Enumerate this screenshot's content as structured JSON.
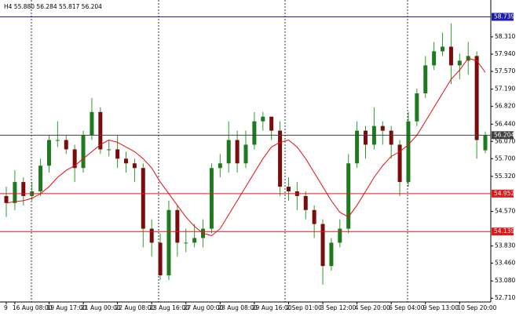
{
  "chart_data": {
    "type": "candlestick",
    "header": "H4  55.880 56.284 55.817 56.204",
    "categories": [
      "9",
      "16 Aug 08:00",
      null,
      null,
      null,
      "19 Aug 17:00",
      null,
      null,
      null,
      "21 Aug 00:00",
      null,
      null,
      null,
      "22 Aug 08:00",
      null,
      null,
      null,
      "23 Aug 16:00",
      null,
      null,
      null,
      "27 Aug 00:00",
      null,
      null,
      null,
      "28 Aug 08:00",
      null,
      null,
      null,
      "29 Aug 16:00",
      null,
      null,
      null,
      "2 Sep 01:00",
      null,
      null,
      null,
      "3 Sep 12:00",
      null,
      null,
      null,
      "4 Sep 20:00",
      null,
      null,
      null,
      "6 Sep 04:00",
      null,
      null,
      null,
      "9 Sep 13:00",
      null,
      null,
      null,
      "10 Sep 20:00",
      null,
      null,
      null
    ],
    "open": [
      54.9,
      54.75,
      55.2,
      54.9,
      55.0,
      55.55,
      56.1,
      56.1,
      55.9,
      55.5,
      56.2,
      56.7,
      55.9,
      55.9,
      55.7,
      55.6,
      55.5,
      54.2,
      53.9,
      53.2,
      54.6,
      53.9,
      53.9,
      54.0,
      54.2,
      55.5,
      55.6,
      56.1,
      55.6,
      56.0,
      56.5,
      56.6,
      56.3,
      55.1,
      55.0,
      54.9,
      54.6,
      54.3,
      53.4,
      53.9,
      54.2,
      55.6,
      56.3,
      56.0,
      56.4,
      56.3,
      56.0,
      55.2,
      56.5,
      57.1,
      57.7,
      58.0,
      58.1,
      57.7,
      57.8,
      57.9,
      55.88
    ],
    "high": [
      55.1,
      55.45,
      55.3,
      55.2,
      55.7,
      56.2,
      56.5,
      56.2,
      56.0,
      56.3,
      57.0,
      56.8,
      56.1,
      56.2,
      55.85,
      55.7,
      55.6,
      54.4,
      54.1,
      54.8,
      54.7,
      54.2,
      54.3,
      54.4,
      55.6,
      55.8,
      56.5,
      56.3,
      56.3,
      56.7,
      56.7,
      56.6,
      56.5,
      55.3,
      55.2,
      55.0,
      54.7,
      54.4,
      54.0,
      54.4,
      55.8,
      56.5,
      56.4,
      56.8,
      56.5,
      56.4,
      56.1,
      56.7,
      57.2,
      57.9,
      58.2,
      58.4,
      58.6,
      57.95,
      58.2,
      58.0,
      56.284
    ],
    "low": [
      54.45,
      54.6,
      54.7,
      54.8,
      54.9,
      55.4,
      55.95,
      55.8,
      55.2,
      55.4,
      56.1,
      55.8,
      55.75,
      55.5,
      55.4,
      55.2,
      53.8,
      53.6,
      53.1,
      53.1,
      53.6,
      53.7,
      53.8,
      53.8,
      54.1,
      55.3,
      55.4,
      55.4,
      55.5,
      55.9,
      56.3,
      56.1,
      54.9,
      54.8,
      54.6,
      54.4,
      54.0,
      53.0,
      53.3,
      53.8,
      54.1,
      55.5,
      55.7,
      55.9,
      56.0,
      55.7,
      54.9,
      55.1,
      56.4,
      57.0,
      57.6,
      57.9,
      57.3,
      57.4,
      57.5,
      55.7,
      55.817
    ],
    "close": [
      54.75,
      55.2,
      54.9,
      55.0,
      55.55,
      56.1,
      56.1,
      55.9,
      55.5,
      56.2,
      56.7,
      55.9,
      55.9,
      55.7,
      55.6,
      55.5,
      54.2,
      53.9,
      53.2,
      54.6,
      53.9,
      53.9,
      54.0,
      54.2,
      55.5,
      55.6,
      56.1,
      55.6,
      56.0,
      56.5,
      56.6,
      56.3,
      55.1,
      55.0,
      54.9,
      54.6,
      54.3,
      53.4,
      53.9,
      54.2,
      55.6,
      56.3,
      56.0,
      56.4,
      56.3,
      56.0,
      55.2,
      56.5,
      57.1,
      57.7,
      58.0,
      58.1,
      57.7,
      57.8,
      57.9,
      56.1,
      56.204
    ],
    "bull_color": "#1f7a1f",
    "bear_color": "#7a0c0c",
    "wick_color": "#2e9a2e",
    "ma": {
      "color": "#e01010",
      "values": [
        54.75,
        54.78,
        54.8,
        54.85,
        54.95,
        55.1,
        55.3,
        55.45,
        55.55,
        55.7,
        55.85,
        56.0,
        56.1,
        56.05,
        55.95,
        55.85,
        55.7,
        55.5,
        55.2,
        54.95,
        54.7,
        54.45,
        54.25,
        54.1,
        54.05,
        54.2,
        54.5,
        54.8,
        55.1,
        55.4,
        55.7,
        55.95,
        56.05,
        56.1,
        55.95,
        55.7,
        55.4,
        55.1,
        54.8,
        54.55,
        54.45,
        54.7,
        55.0,
        55.3,
        55.55,
        55.75,
        55.85,
        56.0,
        56.2,
        56.5,
        56.8,
        57.1,
        57.4,
        57.6,
        57.85,
        57.8,
        57.55
      ]
    },
    "levels": [
      {
        "value": 58.739,
        "color": "#1c1ca8"
      },
      {
        "value": 56.204,
        "color": "#404040"
      },
      {
        "value": 54.952,
        "color": "#e01818"
      },
      {
        "value": 54.139,
        "color": "#e01818"
      }
    ],
    "ylim": [
      52.63,
      59.1
    ],
    "yticks": [
      {
        "value": 58.31,
        "label": "58.310"
      },
      {
        "value": 57.94,
        "label": "57.940"
      },
      {
        "value": 57.57,
        "label": "57.570"
      },
      {
        "value": 57.19,
        "label": "57.190"
      },
      {
        "value": 56.82,
        "label": "56.820"
      },
      {
        "value": 56.44,
        "label": "56.440"
      },
      {
        "value": 56.07,
        "label": "56.070"
      },
      {
        "value": 55.7,
        "label": "55.700"
      },
      {
        "value": 55.32,
        "label": "55.320"
      },
      {
        "value": 54.57,
        "label": "54.570"
      },
      {
        "value": 53.83,
        "label": "53.830"
      },
      {
        "value": 53.46,
        "label": "53.460"
      },
      {
        "value": 53.08,
        "label": "53.080"
      },
      {
        "value": 52.71,
        "label": "52.710"
      }
    ]
  }
}
